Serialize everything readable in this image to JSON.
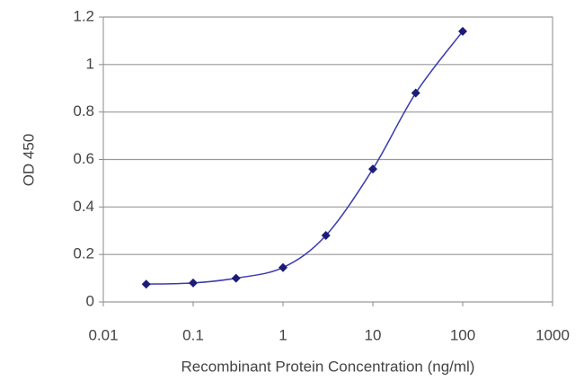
{
  "chart_data": {
    "type": "line",
    "x_label": "Recombinant Protein Concentration (ng/ml)",
    "y_label": "OD 450",
    "x": [
      0.03,
      0.1,
      0.3,
      1,
      3,
      10,
      30,
      100
    ],
    "series": [
      {
        "color": "#1c1c78",
        "values": [
          0.075,
          0.08,
          0.1,
          0.145,
          0.28,
          0.56,
          0.88,
          1.14
        ]
      }
    ],
    "xscale": "log",
    "xlim": [
      0.01,
      1000
    ],
    "xticks": [
      0.01,
      0.1,
      1,
      10,
      100,
      1000
    ],
    "ylim": [
      0,
      1.2
    ],
    "yticks": [
      0,
      0.2,
      0.4,
      0.6,
      0.8,
      1,
      1.2
    ],
    "grid": true,
    "smooth": true
  }
}
